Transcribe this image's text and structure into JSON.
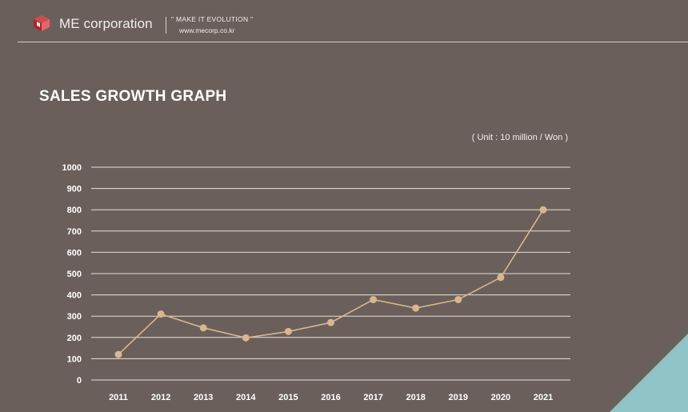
{
  "header": {
    "company": "ME corporation",
    "slogan": "\" MAKE IT EVOLUTION \"",
    "website": "www.mecorp.co.kr"
  },
  "page_title": "SALES GROWTH GRAPH",
  "unit_label": "( Unit : 10 million / Won )",
  "colors": {
    "background": "#6a5f5a",
    "line": "#d8b690",
    "marker": "#d8b690",
    "grid": "#e7e1dd",
    "accent_corner": "#8fc3c4",
    "logo_red": "#c4343a"
  },
  "chart_data": {
    "type": "line",
    "title": "",
    "xlabel": "",
    "ylabel": "",
    "categories": [
      "2011",
      "2012",
      "2013",
      "2014",
      "2015",
      "2016",
      "2017",
      "2018",
      "2019",
      "2020",
      "2021"
    ],
    "values": [
      120,
      310,
      245,
      198,
      228,
      270,
      378,
      338,
      378,
      482,
      800
    ],
    "ylim": [
      0,
      1000
    ],
    "yticks": [
      "0",
      "100",
      "200",
      "300",
      "400",
      "500",
      "600",
      "700",
      "800",
      "900",
      "1000"
    ],
    "grid": true,
    "legend": "none"
  }
}
